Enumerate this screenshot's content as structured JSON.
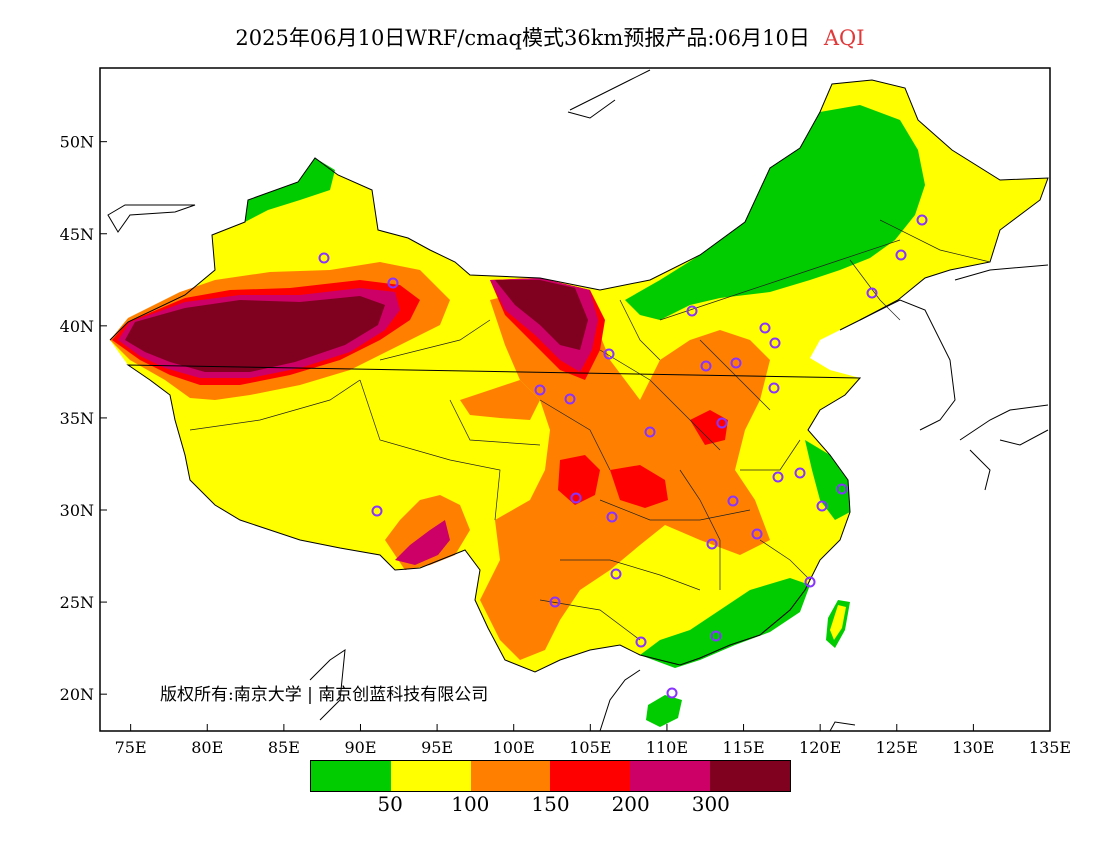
{
  "title": {
    "main": "2025年06月10日WRF/cmaq模式36km预报产品:06月10日",
    "variable": "AQI"
  },
  "axes": {
    "lon_labels": [
      "75E",
      "80E",
      "85E",
      "90E",
      "95E",
      "100E",
      "105E",
      "110E",
      "115E",
      "120E",
      "125E",
      "130E",
      "135E"
    ],
    "lat_labels": [
      "50N",
      "45N",
      "40N",
      "35N",
      "30N",
      "25N",
      "20N"
    ],
    "lon_range": [
      73,
      135
    ],
    "lat_range": [
      18,
      54
    ]
  },
  "copyright": "版权所有:南京大学 | 南京创蓝科技有限公司",
  "legend": {
    "colors": [
      "#00cc00",
      "#ffff00",
      "#ff8000",
      "#ff0000",
      "#cc0066",
      "#800020"
    ],
    "labels": [
      "50",
      "100",
      "150",
      "200",
      "300"
    ]
  },
  "aqi_colors": {
    "good": "#00cc00",
    "moderate": "#ffff00",
    "unhealthy_sensitive": "#ff8000",
    "unhealthy": "#ff0000",
    "very_unhealthy": "#cc0066",
    "hazardous": "#800020"
  },
  "stations_icon": "station-circle-icon"
}
